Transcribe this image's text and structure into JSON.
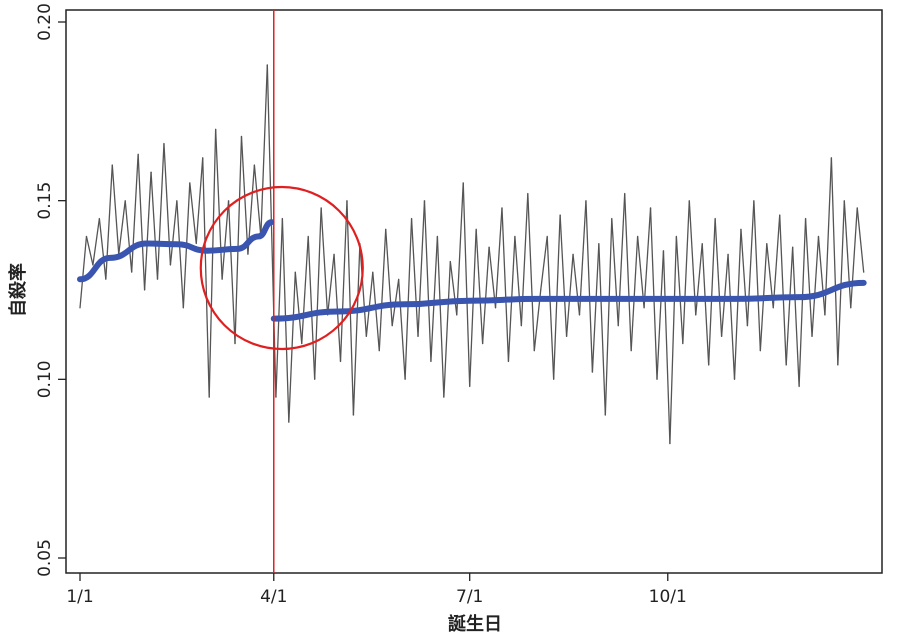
{
  "chart_data": {
    "type": "line",
    "title": "",
    "xlabel": "誕生日",
    "ylabel": "自殺率",
    "ylim": [
      0.05,
      0.2
    ],
    "yticks": [
      "0.05",
      "0.10",
      "0.15",
      "0.20"
    ],
    "yticks_values": [
      0.05,
      0.1,
      0.15,
      0.2
    ],
    "xticks": [
      "1/1",
      "4/1",
      "7/1",
      "10/1"
    ],
    "grid": false,
    "series": [
      {
        "kind": "daily",
        "color": "#555555",
        "x": [
          "1/1",
          "1/4",
          "1/7",
          "1/10",
          "1/13",
          "1/16",
          "1/19",
          "1/22",
          "1/25",
          "1/28",
          "1/31",
          "2/3",
          "2/6",
          "2/9",
          "2/12",
          "2/15",
          "2/18",
          "2/21",
          "2/24",
          "2/27",
          "3/2",
          "3/5",
          "3/8",
          "3/11",
          "3/14",
          "3/17",
          "3/20",
          "3/23",
          "3/26",
          "3/29",
          "4/2",
          "4/5",
          "4/8",
          "4/11",
          "4/14",
          "4/17",
          "4/20",
          "4/23",
          "4/26",
          "4/29",
          "5/2",
          "5/5",
          "5/8",
          "5/11",
          "5/14",
          "5/17",
          "5/20",
          "5/23",
          "5/26",
          "5/29",
          "6/1",
          "6/4",
          "6/7",
          "6/10",
          "6/13",
          "6/16",
          "6/19",
          "6/22",
          "6/25",
          "6/28",
          "7/1",
          "7/4",
          "7/7",
          "7/10",
          "7/13",
          "7/16",
          "7/19",
          "7/22",
          "7/25",
          "7/28",
          "7/31",
          "8/3",
          "8/6",
          "8/9",
          "8/12",
          "8/15",
          "8/18",
          "8/21",
          "8/24",
          "8/27",
          "8/30",
          "9/2",
          "9/5",
          "9/8",
          "9/11",
          "9/14",
          "9/17",
          "9/20",
          "9/23",
          "9/26",
          "9/29",
          "10/2",
          "10/5",
          "10/8",
          "10/11",
          "10/14",
          "10/17",
          "10/20",
          "10/23",
          "10/26",
          "10/29",
          "11/1",
          "11/4",
          "11/7",
          "11/10",
          "11/13",
          "11/16",
          "11/19",
          "11/22",
          "11/25",
          "11/28",
          "12/1",
          "12/4",
          "12/7",
          "12/10",
          "12/13",
          "12/16",
          "12/19",
          "12/22",
          "12/25",
          "12/28",
          "12/31"
        ],
        "values": [
          0.12,
          0.14,
          0.132,
          0.145,
          0.128,
          0.16,
          0.135,
          0.15,
          0.13,
          0.163,
          0.125,
          0.158,
          0.128,
          0.166,
          0.132,
          0.15,
          0.12,
          0.155,
          0.138,
          0.162,
          0.095,
          0.17,
          0.128,
          0.15,
          0.11,
          0.168,
          0.135,
          0.16,
          0.14,
          0.188,
          0.095,
          0.145,
          0.088,
          0.13,
          0.11,
          0.14,
          0.1,
          0.148,
          0.118,
          0.135,
          0.105,
          0.15,
          0.09,
          0.138,
          0.112,
          0.13,
          0.108,
          0.142,
          0.115,
          0.128,
          0.1,
          0.145,
          0.112,
          0.15,
          0.105,
          0.14,
          0.095,
          0.133,
          0.118,
          0.155,
          0.098,
          0.142,
          0.11,
          0.137,
          0.12,
          0.148,
          0.105,
          0.14,
          0.115,
          0.152,
          0.108,
          0.125,
          0.14,
          0.1,
          0.146,
          0.112,
          0.135,
          0.118,
          0.15,
          0.102,
          0.138,
          0.09,
          0.145,
          0.115,
          0.152,
          0.108,
          0.14,
          0.12,
          0.148,
          0.1,
          0.136,
          0.082,
          0.14,
          0.11,
          0.15,
          0.118,
          0.138,
          0.104,
          0.145,
          0.112,
          0.135,
          0.1,
          0.142,
          0.115,
          0.15,
          0.108,
          0.138,
          0.12,
          0.146,
          0.104,
          0.137,
          0.098,
          0.145,
          0.112,
          0.14,
          0.118,
          0.162,
          0.104,
          0.15,
          0.12,
          0.148,
          0.13
        ]
      },
      {
        "kind": "smooth-before",
        "color": "#3a55b0",
        "x": [
          "1/1",
          "1/15",
          "2/1",
          "2/15",
          "3/1",
          "3/15",
          "3/25",
          "3/31"
        ],
        "values": [
          0.128,
          0.134,
          0.138,
          0.1378,
          0.136,
          0.1365,
          0.14,
          0.144
        ]
      },
      {
        "kind": "smooth-after",
        "color": "#3a55b0",
        "x": [
          "4/1",
          "5/1",
          "6/1",
          "7/1",
          "8/1",
          "9/1",
          "10/1",
          "11/1",
          "12/1",
          "12/31"
        ],
        "values": [
          0.117,
          0.119,
          0.121,
          0.122,
          0.1225,
          0.1225,
          0.1225,
          0.1225,
          0.123,
          0.127
        ]
      }
    ],
    "annotations": {
      "vertical_line_at": "4/1",
      "vertical_line_color": "#e02020",
      "circle_color": "#e02020",
      "circle_around": "4/1"
    }
  }
}
